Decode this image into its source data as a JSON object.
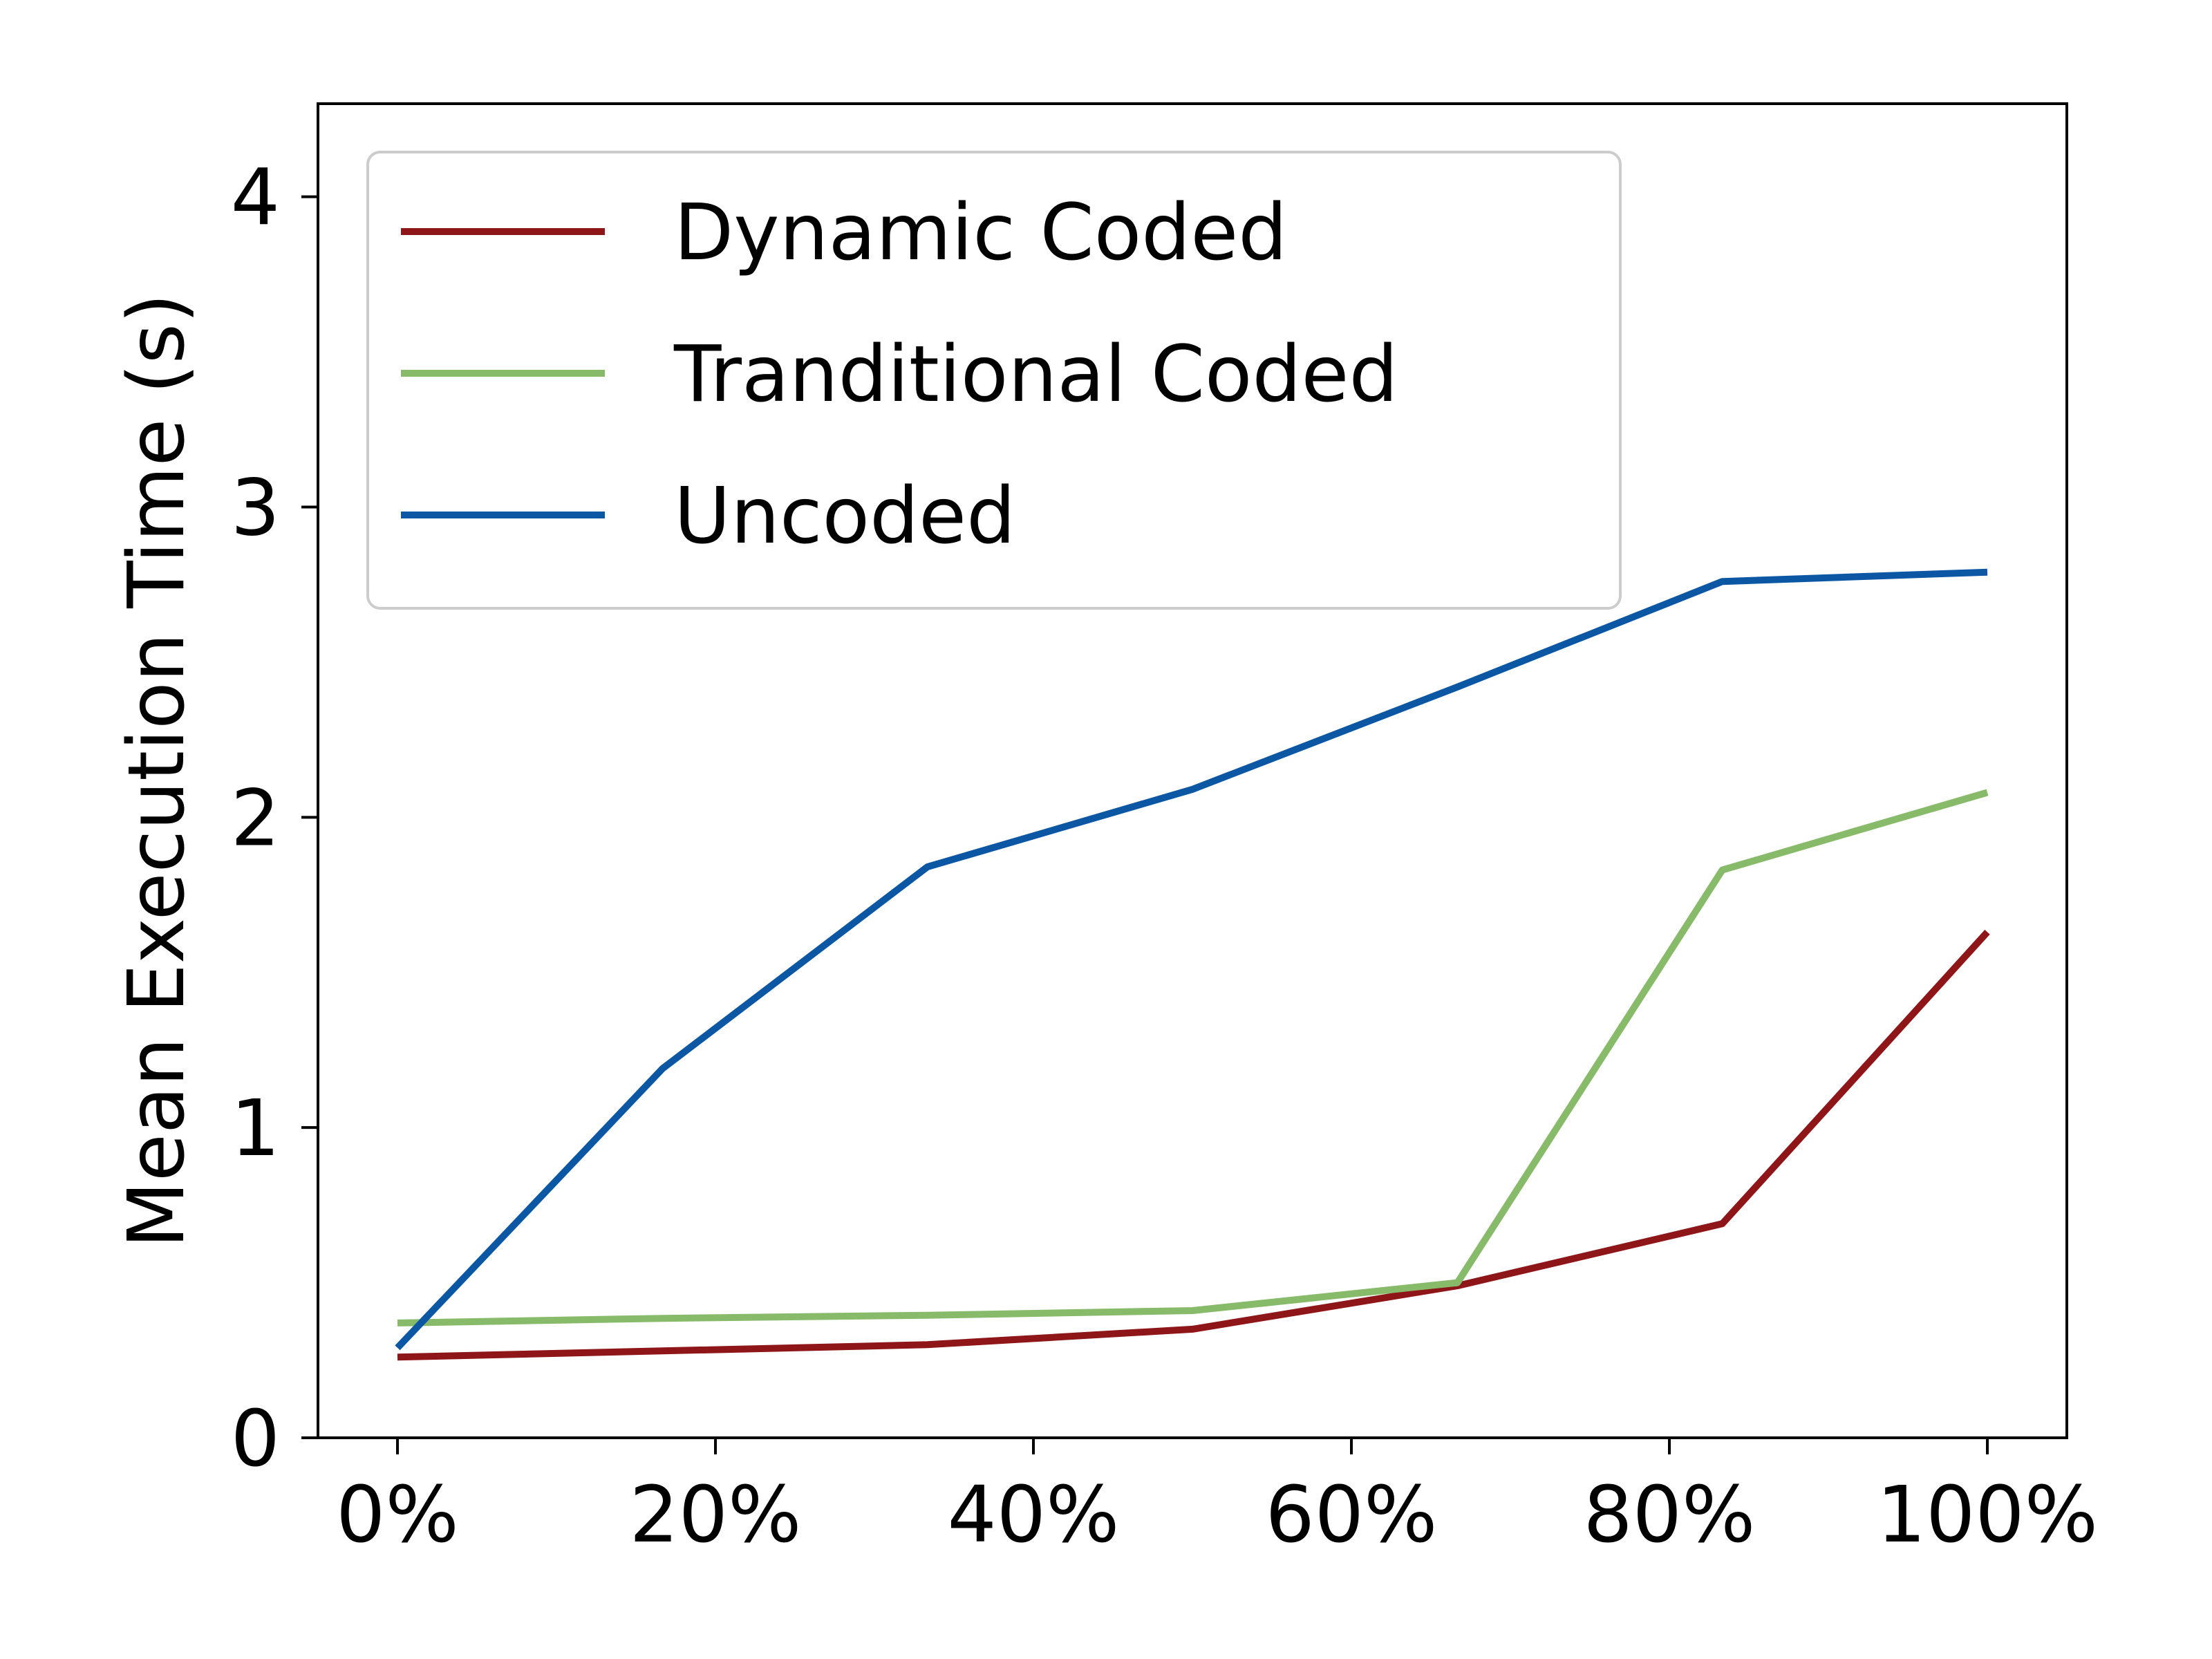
{
  "chart_data": {
    "type": "line",
    "x": [
      0,
      16.67,
      33.33,
      50,
      66.67,
      83.33,
      100
    ],
    "series": [
      {
        "name": "Dynamic Coded",
        "color": "#8e1518",
        "values": [
          0.26,
          0.28,
          0.3,
          0.35,
          0.49,
          0.69,
          1.63
        ]
      },
      {
        "name": "Tranditional Coded",
        "color": "#87bb6a",
        "values": [
          0.37,
          0.385,
          0.395,
          0.41,
          0.5,
          1.83,
          2.08
        ]
      },
      {
        "name": "Uncoded",
        "color": "#0b57a4",
        "values": [
          0.29,
          1.19,
          1.84,
          2.09,
          2.42,
          2.76,
          2.79
        ]
      }
    ],
    "xlabel": "",
    "ylabel": "Mean Execution Time (s)",
    "xlim": [
      -5,
      105
    ],
    "ylim": [
      0,
      4.3
    ],
    "xticks": [
      0,
      20,
      40,
      60,
      80,
      100
    ],
    "xtick_labels": [
      "0%",
      "20%",
      "40%",
      "60%",
      "80%",
      "100%"
    ],
    "yticks": [
      0,
      1,
      2,
      3,
      4
    ],
    "ytick_labels": [
      "0",
      "1",
      "2",
      "3",
      "4"
    ],
    "legend_position": "top-left",
    "grid": false
  }
}
